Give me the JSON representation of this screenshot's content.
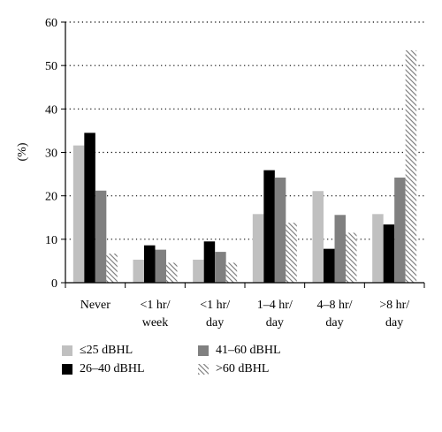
{
  "chart_data": {
    "type": "bar",
    "ylabel": "(%)",
    "ylim": [
      0,
      60
    ],
    "yticks": [
      0,
      10,
      20,
      30,
      40,
      50,
      60
    ],
    "grid": "horizontal-dotted",
    "legend_position": "bottom",
    "categories": [
      [
        "Never"
      ],
      [
        "<1 hr/",
        "week"
      ],
      [
        "<1 hr/",
        "day"
      ],
      [
        "1–4 hr/",
        "day"
      ],
      [
        "4–8 hr/",
        "day"
      ],
      [
        ">8 hr/",
        "day"
      ]
    ],
    "series": [
      {
        "name": "≤25 dBHL",
        "color": "#c0c0c0",
        "pattern": "solid",
        "values": [
          31.6,
          5.3,
          5.3,
          15.8,
          21.1,
          15.8
        ]
      },
      {
        "name": "26–40 dBHL",
        "color": "#000000",
        "pattern": "solid",
        "values": [
          34.5,
          8.6,
          9.5,
          25.9,
          7.8,
          13.4
        ]
      },
      {
        "name": "41–60 dBHL",
        "color": "#808080",
        "pattern": "solid",
        "values": [
          21.2,
          7.6,
          7.1,
          24.2,
          15.6,
          24.2
        ]
      },
      {
        "name": ">60 dBHL",
        "color": "#888888",
        "pattern": "diagonal-hatch",
        "values": [
          6.7,
          4.6,
          4.6,
          13.8,
          11.5,
          53.5
        ]
      }
    ]
  }
}
